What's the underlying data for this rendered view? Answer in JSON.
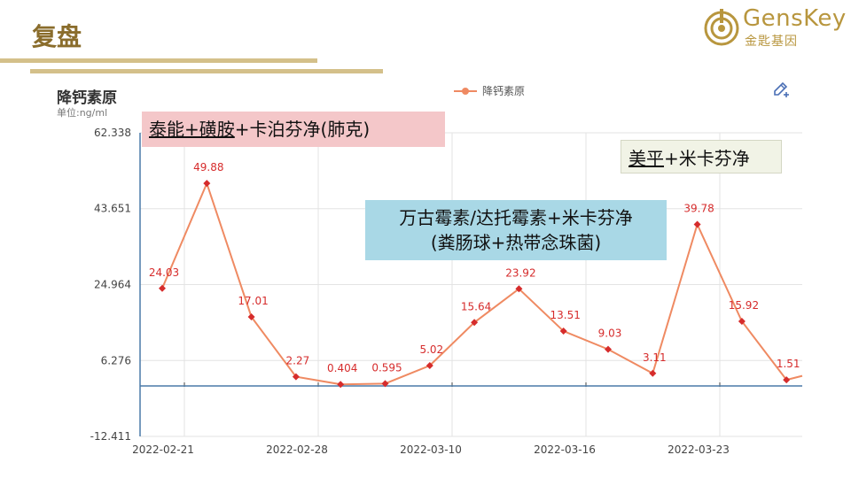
{
  "slide": {
    "title": "复盘"
  },
  "logo": {
    "brand": "GensKey",
    "sub": "金匙基因"
  },
  "chart_data": {
    "type": "line",
    "title": "降钙素原",
    "unit": "单位:ng/ml",
    "legend": "降钙素原",
    "legend_position": "top-center",
    "y_ticks": [
      "62.338",
      "43.651",
      "24.964",
      "6.276",
      "-12.411"
    ],
    "ylim": [
      -12.411,
      62.338
    ],
    "x_ticks": [
      "2022-02-21",
      "2022-02-28",
      "2022-03-10",
      "2022-03-16",
      "2022-03-23"
    ],
    "series": [
      {
        "name": "降钙素原",
        "color": "#ef8a62",
        "marker_color": "#d62c2c",
        "values": [
          24.03,
          49.88,
          17.01,
          2.27,
          0.404,
          0.595,
          5.02,
          15.64,
          23.92,
          13.51,
          9.03,
          3.11,
          39.78,
          15.92,
          1.51
        ],
        "labels": [
          "24.03",
          "49.88",
          "17.01",
          "2.27",
          "0.404",
          "0.595",
          "5.02",
          "15.64",
          "23.92",
          "13.51",
          "9.03",
          "3.11",
          "39.78",
          "15.92",
          "1.51"
        ]
      }
    ],
    "grid": true
  },
  "annotations": {
    "a1_u": "泰能+磺胺",
    "a1_rest": "+卡泊芬净(肺克)",
    "a2_u": "美平",
    "a2_rest": "+米卡芬净",
    "a3_line1": "万古霉素/达托霉素+米卡芬净",
    "a3_line2": "(粪肠球+热带念珠菌)"
  }
}
